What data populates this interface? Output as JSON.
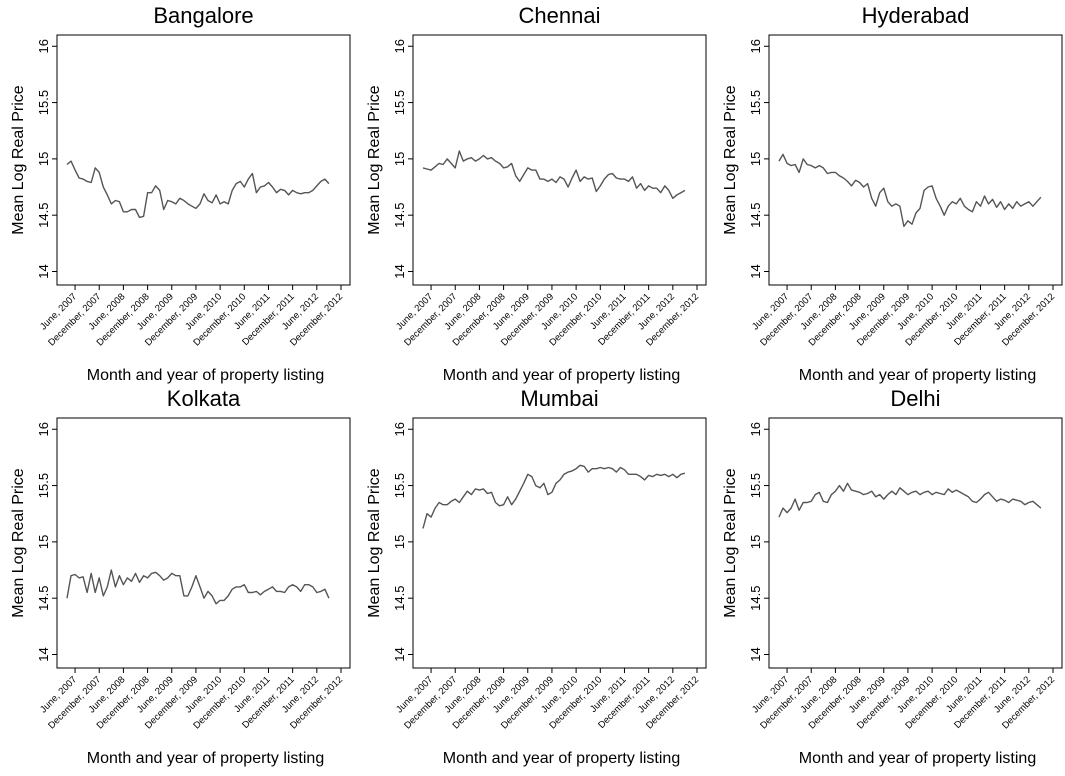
{
  "chart_data": [
    {
      "type": "line",
      "title": "Bangalore",
      "x_label": "Month and year of property listing",
      "y_label": "Mean Log Real Price",
      "categories": [
        null,
        null,
        "June, 2007",
        null,
        null,
        null,
        null,
        null,
        "December, 2007",
        null,
        null,
        null,
        null,
        null,
        "June, 2008",
        null,
        null,
        null,
        null,
        null,
        "December, 2008",
        null,
        null,
        null,
        null,
        null,
        "June, 2009",
        null,
        null,
        null,
        null,
        null,
        "December, 2009",
        null,
        null,
        null,
        null,
        null,
        "June, 2010",
        null,
        null,
        null,
        null,
        null,
        "December, 2010",
        null,
        null,
        null,
        null,
        null,
        "June, 2011",
        null,
        null,
        null,
        null,
        null,
        "December, 2011",
        null,
        null,
        null,
        null,
        null,
        "June, 2012",
        null,
        null,
        null,
        null,
        null,
        "December, 2012"
      ],
      "values": [
        14.95,
        14.98,
        14.9,
        14.83,
        14.82,
        14.8,
        14.79,
        14.92,
        14.88,
        14.75,
        14.68,
        14.6,
        14.63,
        14.62,
        14.53,
        14.53,
        14.55,
        14.55,
        14.48,
        14.49,
        14.7,
        14.7,
        14.76,
        14.72,
        14.55,
        14.63,
        14.62,
        14.6,
        14.65,
        14.63,
        14.6,
        14.58,
        14.56,
        14.6,
        14.69,
        14.63,
        14.61,
        14.68,
        14.6,
        14.62,
        14.6,
        14.72,
        14.78,
        14.8,
        14.75,
        14.82,
        14.87,
        14.7,
        14.75,
        14.76,
        14.79,
        14.75,
        14.7,
        14.73,
        14.72,
        14.68,
        14.72,
        14.7,
        14.69,
        14.7,
        14.7,
        14.72,
        14.76,
        14.8,
        14.82,
        14.78,
        null,
        null,
        null
      ],
      "color": "#555555",
      "ylim": [
        13.88,
        16.1
      ],
      "yticks": [
        14,
        14.5,
        15,
        15.5,
        16
      ]
    },
    {
      "type": "line",
      "title": "Chennai",
      "x_label": "Month and year of property listing",
      "y_label": "Mean Log Real Price",
      "categories": [
        null,
        null,
        "June, 2007",
        null,
        null,
        null,
        null,
        null,
        "December, 2007",
        null,
        null,
        null,
        null,
        null,
        "June, 2008",
        null,
        null,
        null,
        null,
        null,
        "December, 2008",
        null,
        null,
        null,
        null,
        null,
        "June, 2009",
        null,
        null,
        null,
        null,
        null,
        "December, 2009",
        null,
        null,
        null,
        null,
        null,
        "June, 2010",
        null,
        null,
        null,
        null,
        null,
        "December, 2010",
        null,
        null,
        null,
        null,
        null,
        "June, 2011",
        null,
        null,
        null,
        null,
        null,
        "December, 2011",
        null,
        null,
        null,
        null,
        null,
        "June, 2012",
        null,
        null,
        null,
        null,
        null,
        "December, 2012"
      ],
      "values": [
        14.92,
        14.91,
        14.9,
        14.93,
        14.96,
        14.95,
        15.0,
        14.96,
        14.92,
        15.07,
        14.98,
        15.0,
        15.01,
        14.98,
        15.0,
        15.03,
        15.0,
        15.01,
        14.98,
        14.96,
        14.92,
        14.93,
        14.96,
        14.85,
        14.8,
        14.86,
        14.92,
        14.9,
        14.9,
        14.82,
        14.82,
        14.8,
        14.82,
        14.79,
        14.84,
        14.82,
        14.75,
        14.83,
        14.9,
        14.8,
        14.84,
        14.82,
        14.83,
        14.71,
        14.76,
        14.82,
        14.86,
        14.87,
        14.83,
        14.82,
        14.82,
        14.8,
        14.84,
        14.74,
        14.78,
        14.72,
        14.76,
        14.74,
        14.74,
        14.7,
        14.76,
        14.72,
        14.65,
        14.68,
        14.7,
        14.72,
        null,
        null,
        null
      ],
      "color": "#555555",
      "ylim": [
        13.88,
        16.1
      ],
      "yticks": [
        14,
        14.5,
        15,
        15.5,
        16
      ]
    },
    {
      "type": "line",
      "title": "Hyderabad",
      "x_label": "Month and year of property listing",
      "y_label": "Mean Log Real Price",
      "categories": [
        null,
        null,
        "June, 2007",
        null,
        null,
        null,
        null,
        null,
        "December, 2007",
        null,
        null,
        null,
        null,
        null,
        "June, 2008",
        null,
        null,
        null,
        null,
        null,
        "December, 2008",
        null,
        null,
        null,
        null,
        null,
        "June, 2009",
        null,
        null,
        null,
        null,
        null,
        "December, 2009",
        null,
        null,
        null,
        null,
        null,
        "June, 2010",
        null,
        null,
        null,
        null,
        null,
        "December, 2010",
        null,
        null,
        null,
        null,
        null,
        "June, 2011",
        null,
        null,
        null,
        null,
        null,
        "December, 2011",
        null,
        null,
        null,
        null,
        null,
        "June, 2012",
        null,
        null,
        null,
        null,
        null,
        "December, 2012"
      ],
      "values": [
        14.98,
        15.04,
        14.96,
        14.94,
        14.95,
        14.88,
        15.0,
        14.95,
        14.94,
        14.92,
        14.94,
        14.92,
        14.87,
        14.88,
        14.88,
        14.85,
        14.83,
        14.8,
        14.76,
        14.81,
        14.79,
        14.75,
        14.78,
        14.65,
        14.58,
        14.7,
        14.74,
        14.62,
        14.58,
        14.6,
        14.58,
        14.4,
        14.45,
        14.42,
        14.52,
        14.56,
        14.72,
        14.75,
        14.76,
        14.65,
        14.58,
        14.5,
        14.58,
        14.62,
        14.6,
        14.65,
        14.58,
        14.55,
        14.53,
        14.62,
        14.58,
        14.67,
        14.6,
        14.64,
        14.57,
        14.62,
        14.55,
        14.6,
        14.56,
        14.62,
        14.58,
        14.6,
        14.62,
        14.58,
        14.62,
        14.66,
        null,
        null,
        null
      ],
      "color": "#555555",
      "ylim": [
        13.88,
        16.1
      ],
      "yticks": [
        14,
        14.5,
        15,
        15.5,
        16
      ]
    },
    {
      "type": "line",
      "title": "Kolkata",
      "x_label": "Month and year of property listing",
      "y_label": "Mean Log Real Price",
      "categories": [
        null,
        null,
        "June, 2007",
        null,
        null,
        null,
        null,
        null,
        "December, 2007",
        null,
        null,
        null,
        null,
        null,
        "June, 2008",
        null,
        null,
        null,
        null,
        null,
        "December, 2008",
        null,
        null,
        null,
        null,
        null,
        "June, 2009",
        null,
        null,
        null,
        null,
        null,
        "December, 2009",
        null,
        null,
        null,
        null,
        null,
        "June, 2010",
        null,
        null,
        null,
        null,
        null,
        "December, 2010",
        null,
        null,
        null,
        null,
        null,
        "June, 2011",
        null,
        null,
        null,
        null,
        null,
        "December, 2011",
        null,
        null,
        null,
        null,
        null,
        "June, 2012",
        null,
        null,
        null,
        null,
        null,
        "December, 2012"
      ],
      "values": [
        14.5,
        14.7,
        14.71,
        14.68,
        14.69,
        14.55,
        14.72,
        14.55,
        14.68,
        14.52,
        14.6,
        14.75,
        14.6,
        14.7,
        14.62,
        14.68,
        14.65,
        14.72,
        14.64,
        14.7,
        14.68,
        14.72,
        14.73,
        14.7,
        14.66,
        14.68,
        14.72,
        14.7,
        14.7,
        14.52,
        14.52,
        14.6,
        14.7,
        14.6,
        14.5,
        14.56,
        14.52,
        14.45,
        14.48,
        14.48,
        14.52,
        14.58,
        14.6,
        14.6,
        14.62,
        14.55,
        14.55,
        14.56,
        14.53,
        14.56,
        14.58,
        14.6,
        14.56,
        14.56,
        14.55,
        14.6,
        14.62,
        14.6,
        14.56,
        14.62,
        14.62,
        14.6,
        14.55,
        14.56,
        14.58,
        14.5,
        null,
        null,
        null
      ],
      "color": "#555555",
      "ylim": [
        13.88,
        16.1
      ],
      "yticks": [
        14,
        14.5,
        15,
        15.5,
        16
      ]
    },
    {
      "type": "line",
      "title": "Mumbai",
      "x_label": "Month and year of property listing",
      "y_label": "Mean Log Real Price",
      "categories": [
        null,
        null,
        "June, 2007",
        null,
        null,
        null,
        null,
        null,
        "December, 2007",
        null,
        null,
        null,
        null,
        null,
        "June, 2008",
        null,
        null,
        null,
        null,
        null,
        "December, 2008",
        null,
        null,
        null,
        null,
        null,
        "June, 2009",
        null,
        null,
        null,
        null,
        null,
        "December, 2009",
        null,
        null,
        null,
        null,
        null,
        "June, 2010",
        null,
        null,
        null,
        null,
        null,
        "December, 2010",
        null,
        null,
        null,
        null,
        null,
        "June, 2011",
        null,
        null,
        null,
        null,
        null,
        "December, 2011",
        null,
        null,
        null,
        null,
        null,
        "June, 2012",
        null,
        null,
        null,
        null,
        null,
        "December, 2012"
      ],
      "values": [
        15.12,
        15.25,
        15.22,
        15.3,
        15.35,
        15.33,
        15.33,
        15.36,
        15.38,
        15.35,
        15.4,
        15.45,
        15.42,
        15.47,
        15.46,
        15.47,
        15.43,
        15.44,
        15.35,
        15.32,
        15.33,
        15.4,
        15.33,
        15.38,
        15.45,
        15.52,
        15.6,
        15.58,
        15.5,
        15.48,
        15.52,
        15.42,
        15.44,
        15.52,
        15.55,
        15.6,
        15.62,
        15.63,
        15.65,
        15.68,
        15.67,
        15.62,
        15.65,
        15.65,
        15.66,
        15.65,
        15.66,
        15.65,
        15.62,
        15.66,
        15.64,
        15.6,
        15.6,
        15.6,
        15.58,
        15.55,
        15.59,
        15.58,
        15.6,
        15.59,
        15.6,
        15.58,
        15.6,
        15.57,
        15.6,
        15.61,
        null,
        null,
        null
      ],
      "color": "#555555",
      "ylim": [
        13.88,
        16.1
      ],
      "yticks": [
        14,
        14.5,
        15,
        15.5,
        16
      ]
    },
    {
      "type": "line",
      "title": "Delhi",
      "x_label": "Month and year of property listing",
      "y_label": "Mean Log Real Price",
      "categories": [
        null,
        null,
        "June, 2007",
        null,
        null,
        null,
        null,
        null,
        "December, 2007",
        null,
        null,
        null,
        null,
        null,
        "June, 2008",
        null,
        null,
        null,
        null,
        null,
        "December, 2008",
        null,
        null,
        null,
        null,
        null,
        "June, 2009",
        null,
        null,
        null,
        null,
        null,
        "December, 2009",
        null,
        null,
        null,
        null,
        null,
        "June, 2010",
        null,
        null,
        null,
        null,
        null,
        "December, 2010",
        null,
        null,
        null,
        null,
        null,
        "June, 2011",
        null,
        null,
        null,
        null,
        null,
        "December, 2011",
        null,
        null,
        null,
        null,
        null,
        "June, 2012",
        null,
        null,
        null,
        null,
        null,
        "December, 2012"
      ],
      "values": [
        15.22,
        15.3,
        15.26,
        15.3,
        15.38,
        15.28,
        15.35,
        15.35,
        15.36,
        15.42,
        15.44,
        15.36,
        15.35,
        15.42,
        15.45,
        15.5,
        15.45,
        15.52,
        15.46,
        15.45,
        15.44,
        15.42,
        15.43,
        15.45,
        15.4,
        15.42,
        15.38,
        15.42,
        15.45,
        15.42,
        15.48,
        15.45,
        15.42,
        15.44,
        15.45,
        15.42,
        15.44,
        15.45,
        15.42,
        15.44,
        15.43,
        15.42,
        15.47,
        15.44,
        15.46,
        15.44,
        15.42,
        15.4,
        15.36,
        15.35,
        15.38,
        15.42,
        15.44,
        15.4,
        15.36,
        15.38,
        15.37,
        15.35,
        15.38,
        15.37,
        15.36,
        15.33,
        15.35,
        15.36,
        15.33,
        15.3,
        null,
        null,
        null
      ],
      "color": "#555555",
      "ylim": [
        13.88,
        16.1
      ],
      "yticks": [
        14,
        14.5,
        15,
        15.5,
        16
      ]
    }
  ]
}
